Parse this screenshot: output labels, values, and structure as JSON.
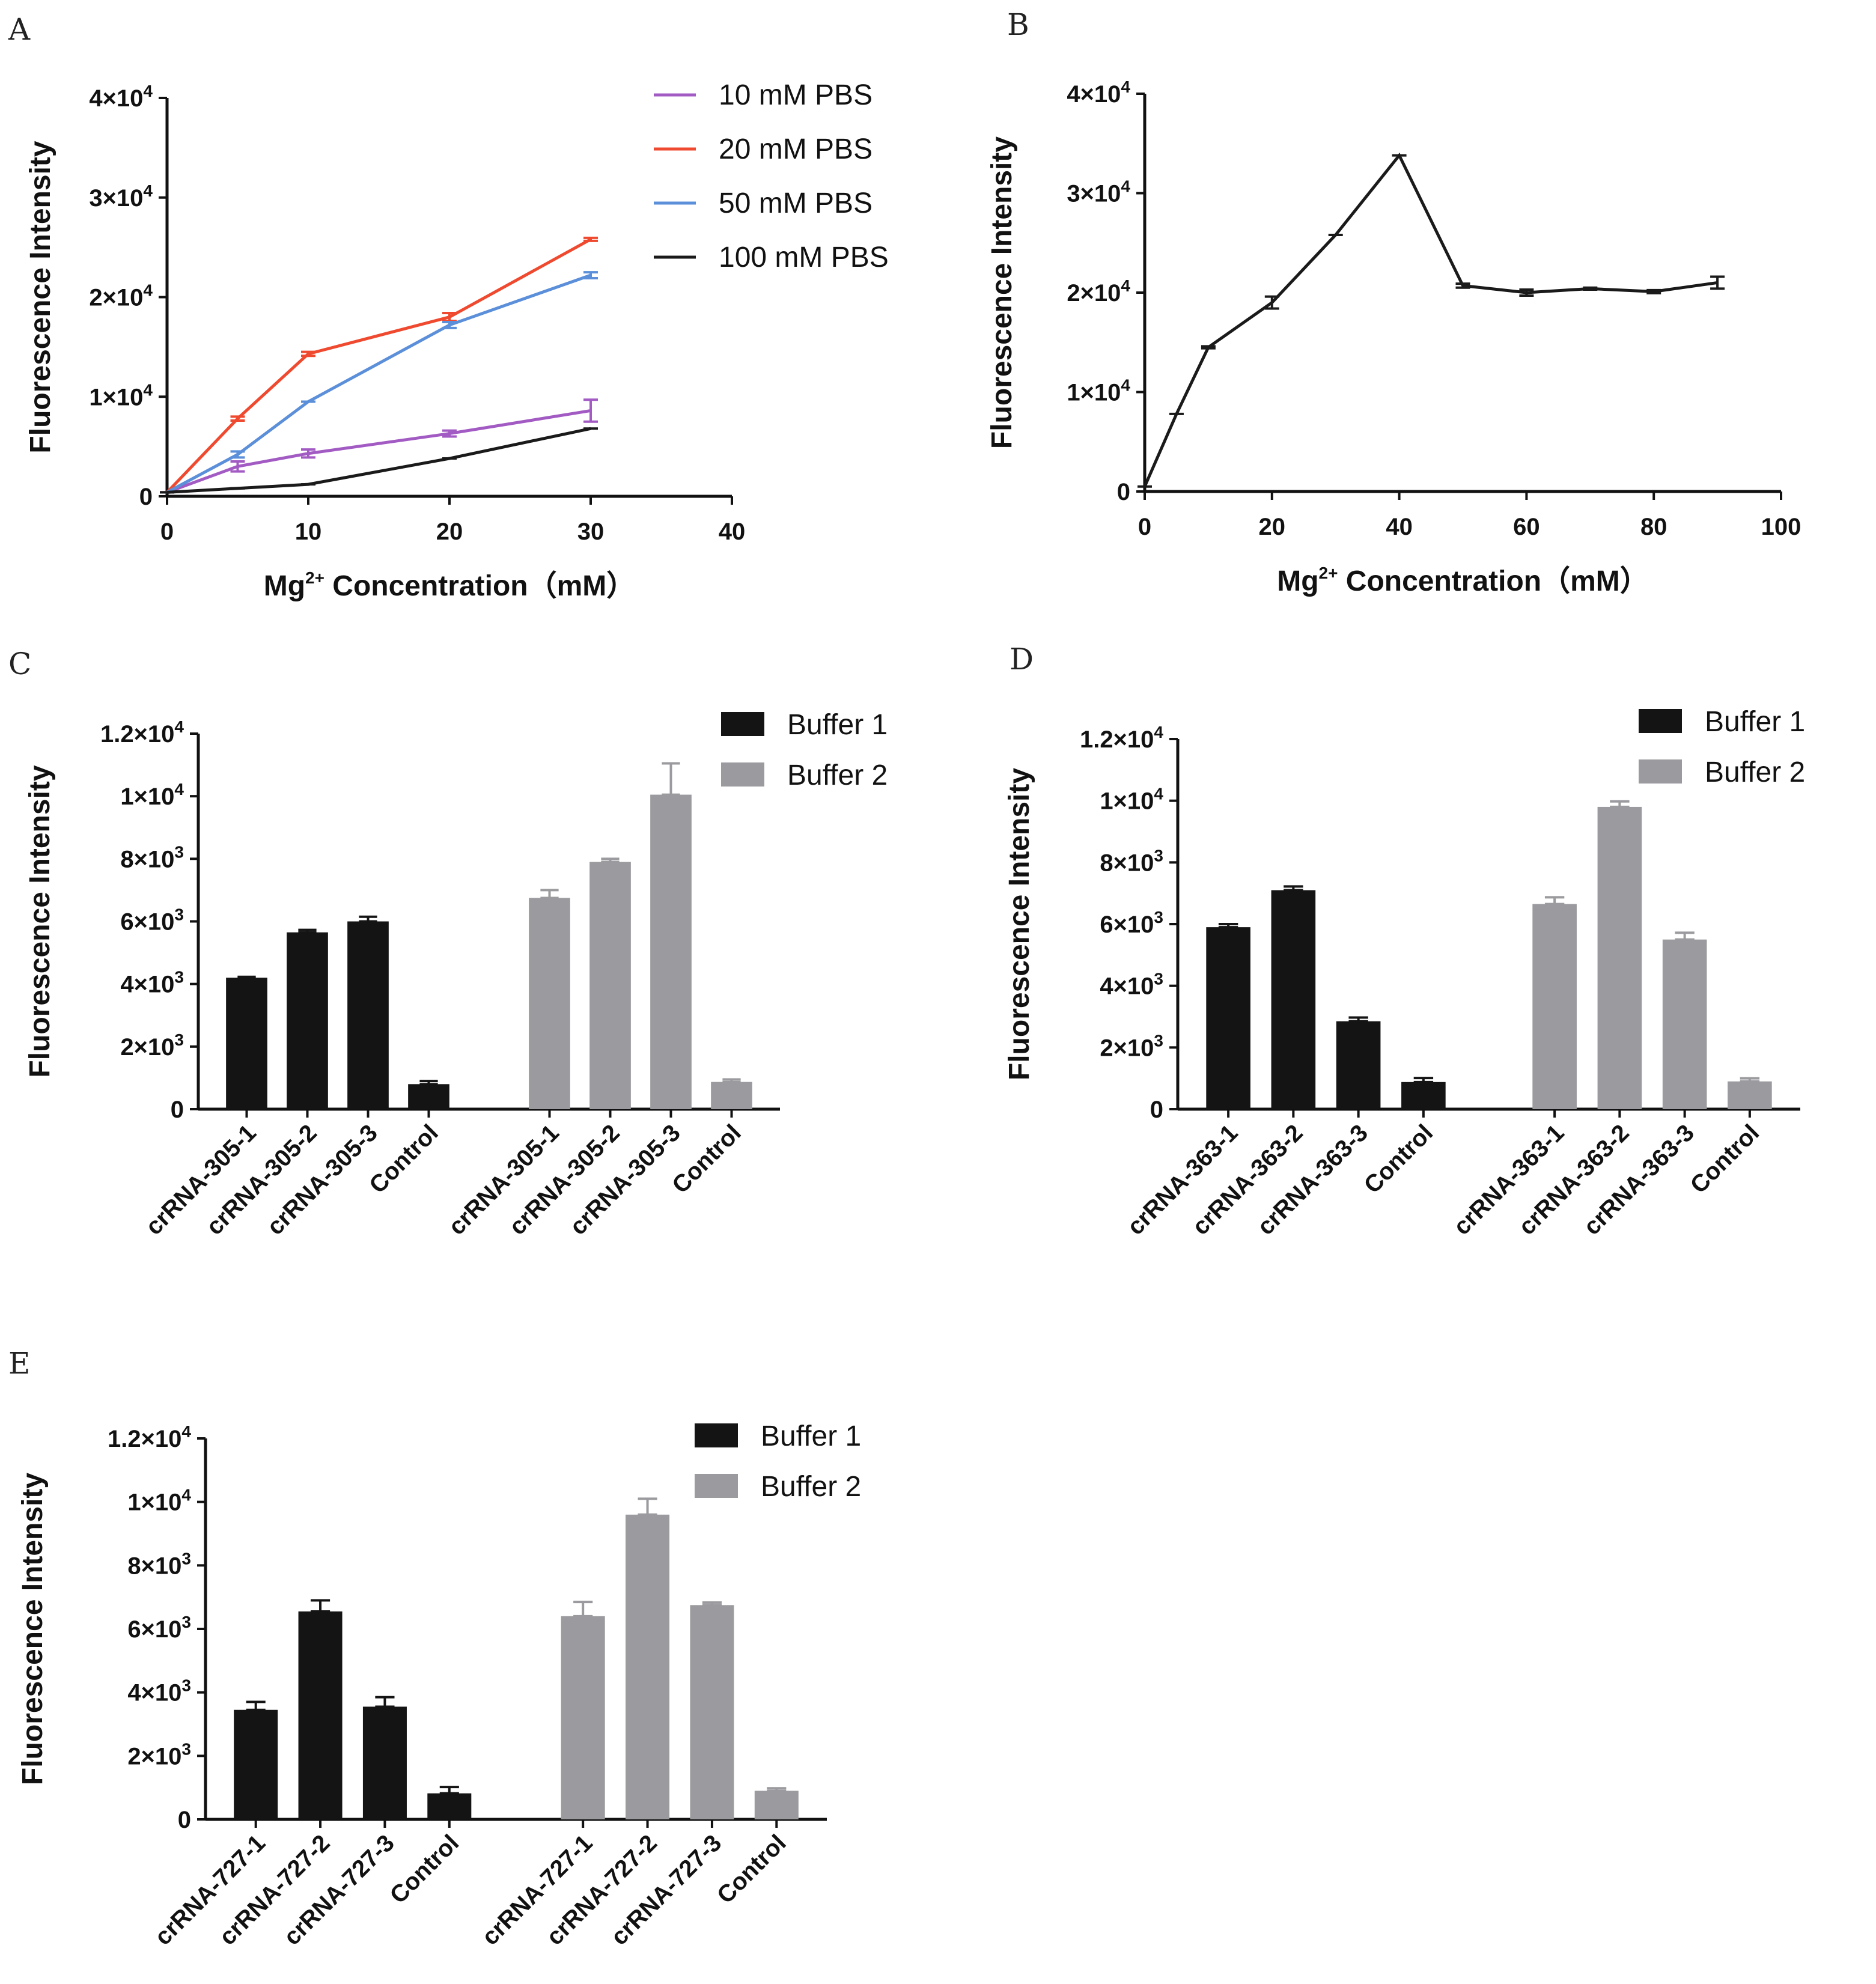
{
  "colors": {
    "axis": "#111111",
    "buffer1": "#141414",
    "buffer2": "#9b9a9e",
    "pbs10": "#a35bc4",
    "pbs20": "#ef4a2f",
    "pbs50": "#5b8fd9",
    "pbs100": "#1a1a1a"
  },
  "chart_data": [
    {
      "panel": "A",
      "type": "line",
      "ylabel": "Fluorescence Intensity",
      "xlabel_main": "Mg",
      "xlabel_sup": "2+",
      "xlabel_tail": " Concentration（mM）",
      "xlim": [
        0,
        40
      ],
      "ylim": [
        0,
        40000
      ],
      "xticks": [
        "0",
        "10",
        "20",
        "30",
        "40"
      ],
      "yticks": [
        {
          "base": "0",
          "exp": ""
        },
        {
          "base": "1×10",
          "exp": "4"
        },
        {
          "base": "2×10",
          "exp": "4"
        },
        {
          "base": "3×10",
          "exp": "4"
        },
        {
          "base": "4×10",
          "exp": "4"
        }
      ],
      "legend_position": "top-right",
      "series": [
        {
          "name": "10 mM PBS",
          "color_key": "pbs10",
          "x": [
            0,
            5,
            10,
            20,
            30
          ],
          "values": [
            400,
            3000,
            4300,
            6300,
            8600
          ],
          "errors": [
            0,
            500,
            400,
            300,
            1100
          ]
        },
        {
          "name": "20 mM PBS",
          "color_key": "pbs20",
          "x": [
            0,
            5,
            10,
            20,
            30
          ],
          "values": [
            400,
            7800,
            14300,
            18000,
            25800
          ],
          "errors": [
            0,
            200,
            200,
            400,
            150
          ]
        },
        {
          "name": "50 mM PBS",
          "color_key": "pbs50",
          "x": [
            0,
            5,
            10,
            20,
            30
          ],
          "values": [
            400,
            4200,
            9500,
            17200,
            22200
          ],
          "errors": [
            0,
            300,
            0,
            300,
            300
          ]
        },
        {
          "name": "100 mM PBS",
          "color_key": "pbs100",
          "x": [
            0,
            5,
            10,
            20,
            30
          ],
          "values": [
            400,
            800,
            1200,
            3800,
            6800
          ],
          "errors": [
            0,
            0,
            0,
            0,
            0
          ]
        }
      ]
    },
    {
      "panel": "B",
      "type": "line",
      "ylabel": "Fluorescence Intensity",
      "xlabel_main": "Mg",
      "xlabel_sup": "2+",
      "xlabel_tail": " Concentration（mM）",
      "xlim": [
        0,
        100
      ],
      "ylim": [
        0,
        40000
      ],
      "xticks": [
        "0",
        "20",
        "40",
        "60",
        "80",
        "100"
      ],
      "yticks": [
        {
          "base": "0",
          "exp": ""
        },
        {
          "base": "1×10",
          "exp": "4"
        },
        {
          "base": "2×10",
          "exp": "4"
        },
        {
          "base": "3×10",
          "exp": "4"
        },
        {
          "base": "4×10",
          "exp": "4"
        }
      ],
      "series": [
        {
          "name": "",
          "color_key": "pbs100",
          "x": [
            0,
            5,
            10,
            20,
            30,
            40,
            50,
            60,
            70,
            80,
            90
          ],
          "values": [
            500,
            7800,
            14500,
            19000,
            25800,
            33800,
            20700,
            20000,
            20400,
            20100,
            21000
          ],
          "errors": [
            0,
            0,
            100,
            600,
            0,
            0,
            200,
            300,
            100,
            150,
            600
          ]
        }
      ]
    },
    {
      "panel": "C",
      "type": "bar",
      "ylabel": "Fluorescence Intensity",
      "ylim": [
        0,
        12000
      ],
      "yticks": [
        {
          "base": "0",
          "exp": ""
        },
        {
          "base": "2×10",
          "exp": "3"
        },
        {
          "base": "4×10",
          "exp": "3"
        },
        {
          "base": "6×10",
          "exp": "3"
        },
        {
          "base": "8×10",
          "exp": "3"
        },
        {
          "base": "1×10",
          "exp": "4"
        },
        {
          "base": "1.2×10",
          "exp": "4"
        }
      ],
      "legend_position": "top-right",
      "series": [
        {
          "name": "Buffer 1",
          "color_key": "buffer1",
          "categories": [
            "crRNA-305-1",
            "crRNA-305-2",
            "crRNA-305-3",
            "Control"
          ],
          "values": [
            4200,
            5650,
            6000,
            800
          ],
          "errors": [
            30,
            80,
            150,
            100
          ]
        },
        {
          "name": "Buffer 2",
          "color_key": "buffer2",
          "categories": [
            "crRNA-305-1",
            "crRNA-305-2",
            "crRNA-305-3",
            "Control"
          ],
          "values": [
            6750,
            7900,
            10050,
            870
          ],
          "errors": [
            250,
            100,
            1000,
            80
          ]
        }
      ]
    },
    {
      "panel": "D",
      "type": "bar",
      "ylabel": "Fluorescence Intensity",
      "ylim": [
        0,
        12000
      ],
      "yticks": [
        {
          "base": "0",
          "exp": ""
        },
        {
          "base": "2×10",
          "exp": "3"
        },
        {
          "base": "4×10",
          "exp": "3"
        },
        {
          "base": "6×10",
          "exp": "3"
        },
        {
          "base": "8×10",
          "exp": "3"
        },
        {
          "base": "1×10",
          "exp": "4"
        },
        {
          "base": "1.2×10",
          "exp": "4"
        }
      ],
      "legend_position": "top-right",
      "series": [
        {
          "name": "Buffer 1",
          "color_key": "buffer1",
          "categories": [
            "crRNA-363-1",
            "crRNA-363-2",
            "crRNA-363-3",
            "Control"
          ],
          "values": [
            5900,
            7100,
            2850,
            880
          ],
          "errors": [
            100,
            120,
            120,
            130
          ]
        },
        {
          "name": "Buffer 2",
          "color_key": "buffer2",
          "categories": [
            "crRNA-363-1",
            "crRNA-363-2",
            "crRNA-363-3",
            "Control"
          ],
          "values": [
            6650,
            9800,
            5500,
            900
          ],
          "errors": [
            220,
            180,
            220,
            100
          ]
        }
      ]
    },
    {
      "panel": "E",
      "type": "bar",
      "ylabel": "Fluorescence Intensity",
      "ylim": [
        0,
        12000
      ],
      "yticks": [
        {
          "base": "0",
          "exp": ""
        },
        {
          "base": "2×10",
          "exp": "3"
        },
        {
          "base": "4×10",
          "exp": "3"
        },
        {
          "base": "6×10",
          "exp": "3"
        },
        {
          "base": "8×10",
          "exp": "3"
        },
        {
          "base": "1×10",
          "exp": "4"
        },
        {
          "base": "1.2×10",
          "exp": "4"
        }
      ],
      "legend_position": "top-right",
      "series": [
        {
          "name": "Buffer 1",
          "color_key": "buffer1",
          "categories": [
            "crRNA-727-1",
            "crRNA-727-2",
            "crRNA-727-3",
            "Control"
          ],
          "values": [
            3450,
            6550,
            3550,
            820
          ],
          "errors": [
            250,
            350,
            300,
            200
          ]
        },
        {
          "name": "Buffer 2",
          "color_key": "buffer2",
          "categories": [
            "crRNA-727-1",
            "crRNA-727-2",
            "crRNA-727-3",
            "Control"
          ],
          "values": [
            6400,
            9600,
            6750,
            900
          ],
          "errors": [
            450,
            500,
            80,
            80
          ]
        }
      ]
    }
  ]
}
